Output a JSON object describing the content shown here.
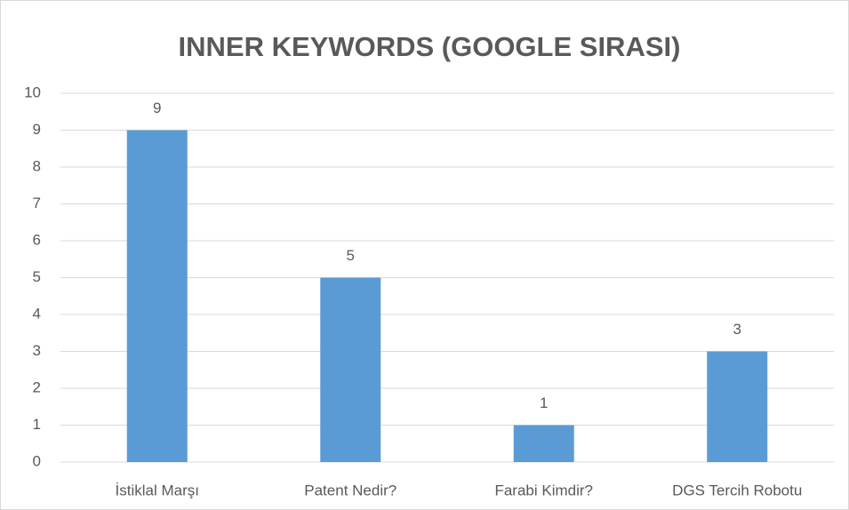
{
  "chart_data": {
    "type": "bar",
    "title": "INNER KEYWORDS (GOOGLE SIRASI)",
    "categories": [
      "İstiklal Marşı",
      "Patent Nedir?",
      "Farabi Kimdir?",
      "DGS Tercih Robotu"
    ],
    "values": [
      9,
      5,
      1,
      3
    ],
    "color": "#5b9bd5",
    "ylim": [
      0,
      10
    ],
    "yticks": [
      0,
      1,
      2,
      3,
      4,
      5,
      6,
      7,
      8,
      9,
      10
    ],
    "grid": true,
    "data_labels": true
  }
}
